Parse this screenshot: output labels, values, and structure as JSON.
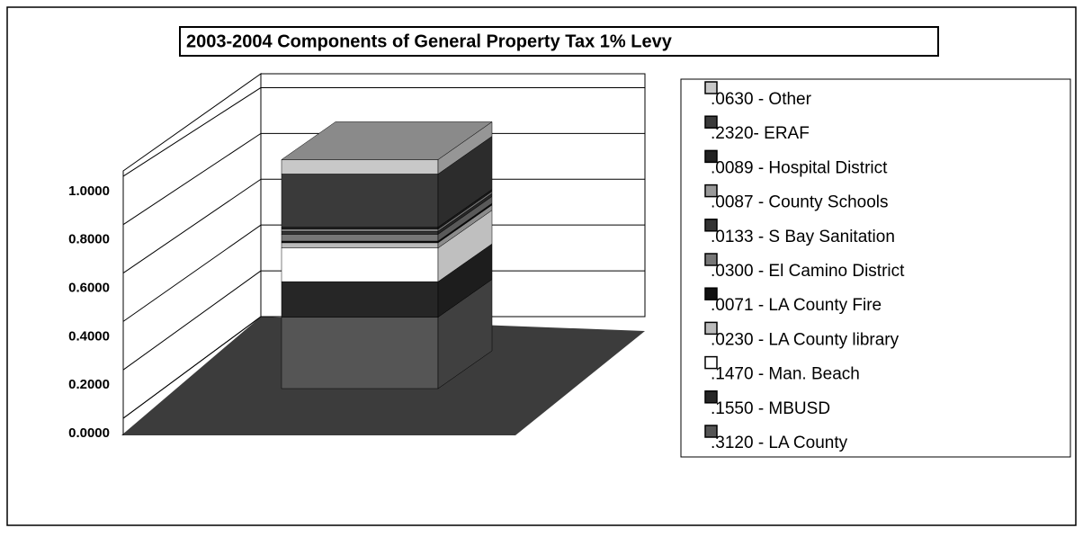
{
  "chart_data": {
    "type": "bar3d-stacked",
    "title": "2003-2004 Components of General Property Tax 1% Levy",
    "categories": [
      null
    ],
    "ylim": [
      0,
      1.1
    ],
    "yticks": [
      {
        "value": 0,
        "label": "0.0000"
      },
      {
        "value": 0.2,
        "label": "0.2000"
      },
      {
        "value": 0.4,
        "label": "0.4000"
      },
      {
        "value": 0.6,
        "label": "0.6000"
      },
      {
        "value": 0.8,
        "label": "0.8000"
      },
      {
        "value": 1.0,
        "label": "1.0000"
      }
    ],
    "grid": true,
    "series": [
      {
        "name": ".3120 - LA County",
        "color": "#555555",
        "values": [
          0.312
        ]
      },
      {
        "name": ".1550 - MBUSD",
        "color": "#262626",
        "values": [
          0.155
        ]
      },
      {
        "name": ".1470 - Man. Beach",
        "color": "#ffffff",
        "values": [
          0.147
        ]
      },
      {
        "name": ".0230 - LA County library",
        "color": "#bbbbbb",
        "values": [
          0.023
        ]
      },
      {
        "name": ".0071 - LA County Fire",
        "color": "#111111",
        "values": [
          0.0071
        ]
      },
      {
        "name": ".0300 - El Camino District",
        "color": "#777777",
        "values": [
          0.03
        ]
      },
      {
        "name": ".0133 - S Bay Sanitation",
        "color": "#333333",
        "values": [
          0.0133
        ]
      },
      {
        "name": ".0087 - County Schools",
        "color": "#999999",
        "values": [
          0.0087
        ]
      },
      {
        "name": ".0089 - Hospital District",
        "color": "#222222",
        "values": [
          0.0089
        ]
      },
      {
        "name": ".2320- ERAF",
        "color": "#3a3a3a",
        "values": [
          0.232
        ]
      },
      {
        "name": ".0630 - Other",
        "color": "#c8c8c8",
        "values": [
          0.063
        ]
      }
    ]
  }
}
